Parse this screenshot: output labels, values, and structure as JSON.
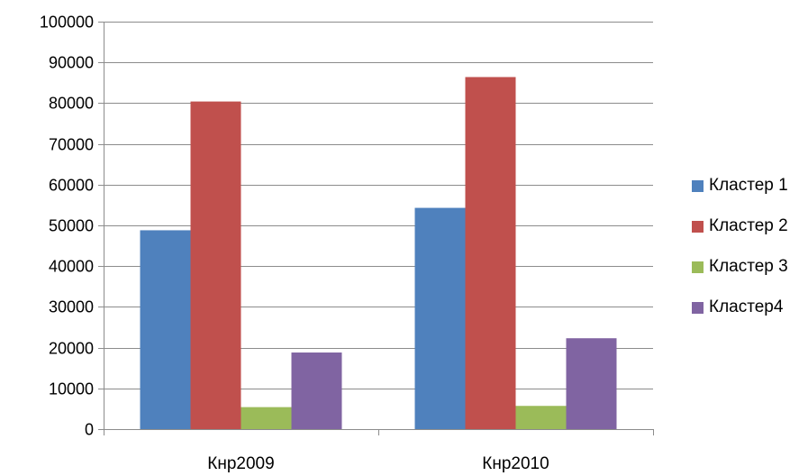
{
  "chart_data": {
    "type": "bar",
    "title": "",
    "xlabel": "",
    "ylabel": "",
    "categories": [
      "Кнр2009",
      "Кнр2010"
    ],
    "ylim": [
      0,
      100000
    ],
    "ytick_step": 10000,
    "y_ticks": [
      "0",
      "10000",
      "20000",
      "30000",
      "40000",
      "50000",
      "60000",
      "70000",
      "80000",
      "90000",
      "100000"
    ],
    "grid": true,
    "legend_position": "right",
    "series": [
      {
        "name": "Кластер 1",
        "color": "#4F81BD",
        "values": [
          48800,
          54300
        ]
      },
      {
        "name": "Кластер 2",
        "color": "#C0504D",
        "values": [
          80400,
          86400
        ]
      },
      {
        "name": "Кластер 3",
        "color": "#9BBB59",
        "values": [
          5400,
          5700
        ]
      },
      {
        "name": "Кластер4",
        "color": "#8064A2",
        "values": [
          18800,
          22300
        ]
      }
    ]
  }
}
